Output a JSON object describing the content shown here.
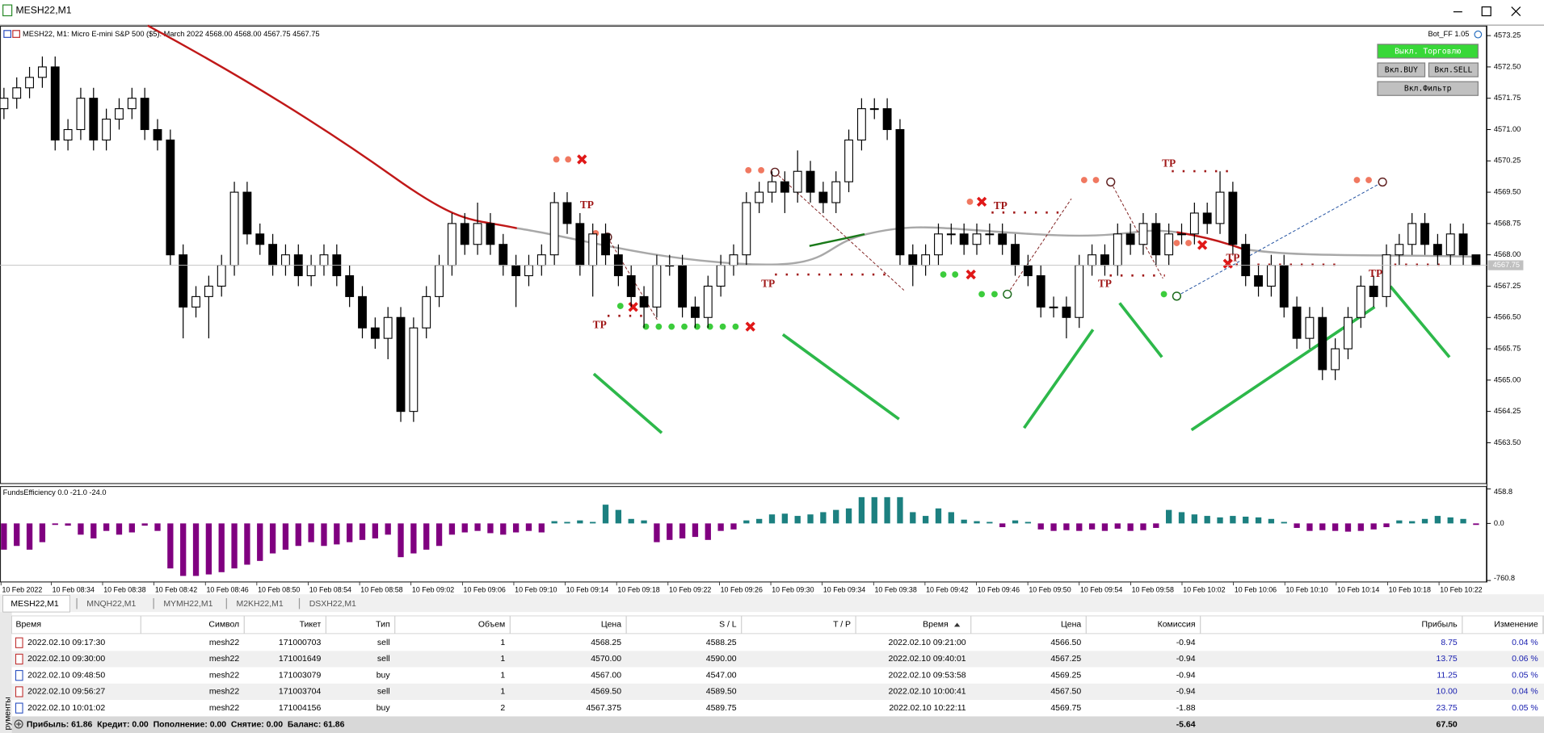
{
  "window": {
    "title": "MESH22,M1"
  },
  "chart_data": [
    {
      "type": "candlestick",
      "header": "MESH22, M1:  Micro E-mini S&P 500 ($5): March 2022  4568.00 4568.00 4567.75 4567.75",
      "expert": "Bot_FF 1.05",
      "colors": {
        "up": "#ffffff",
        "down": "#000000",
        "outline": "#000000"
      },
      "ylim": [
        4562.51,
        4573.49
      ],
      "yticks": [
        4573.25,
        {
          "value": 4572.5,
          "label": "4572.50"
        },
        4571.75,
        {
          "value": 4571,
          "label": "4571.00"
        },
        4570.25,
        {
          "value": 4569.5,
          "label": "4569.50"
        },
        4568.75,
        {
          "value": 4568,
          "label": "4568.00"
        },
        4567.25,
        {
          "value": 4566.5,
          "label": "4566.50"
        },
        4565.75,
        {
          "value": 4565,
          "label": "4565.00"
        },
        4564.25,
        {
          "value": 4563.5,
          "label": "4563.50"
        }
      ],
      "current_price": 4567.75,
      "x_labels": [
        "10 Feb 2022",
        "10 Feb 08:34",
        "10 Feb 08:38",
        "10 Feb 08:42",
        "10 Feb 08:46",
        "10 Feb 08:50",
        "10 Feb 08:54",
        "10 Feb 08:58",
        "10 Feb 09:02",
        "10 Feb 09:06",
        "10 Feb 09:10",
        "10 Feb 09:14",
        "10 Feb 09:18",
        "10 Feb 09:22",
        "10 Feb 09:26",
        "10 Feb 09:30",
        "10 Feb 09:34",
        "10 Feb 09:38",
        "10 Feb 09:42",
        "10 Feb 09:46",
        "10 Feb 09:50",
        "10 Feb 09:54",
        "10 Feb 09:58",
        "10 Feb 10:02",
        "10 Feb 10:06",
        "10 Feb 10:10",
        "10 Feb 10:14",
        "10 Feb 10:18",
        "10 Feb 10:22"
      ],
      "tp_labels": [
        "TP",
        "TP",
        "TP",
        "TP",
        "TP",
        "TP",
        "TP",
        "TP"
      ],
      "ohlc": [
        [
          4571.5,
          4572.0,
          4571.25,
          4571.75
        ],
        [
          4571.75,
          4572.25,
          4571.5,
          4572.0
        ],
        [
          4572.0,
          4572.5,
          4571.75,
          4572.25
        ],
        [
          4572.25,
          4572.75,
          4572.0,
          4572.5
        ],
        [
          4572.5,
          4572.75,
          4570.5,
          4570.75
        ],
        [
          4570.75,
          4571.25,
          4570.5,
          4571.0
        ],
        [
          4571.0,
          4572.0,
          4570.75,
          4571.75
        ],
        [
          4571.75,
          4572.0,
          4570.5,
          4570.75
        ],
        [
          4570.75,
          4571.5,
          4570.5,
          4571.25
        ],
        [
          4571.25,
          4571.75,
          4571.0,
          4571.5
        ],
        [
          4571.5,
          4572.0,
          4571.25,
          4571.75
        ],
        [
          4571.75,
          4572.0,
          4570.75,
          4571.0
        ],
        [
          4571.0,
          4571.25,
          4570.5,
          4570.75
        ],
        [
          4570.75,
          4571.0,
          4567.75,
          4568.0
        ],
        [
          4568.0,
          4568.25,
          4566.0,
          4566.75
        ],
        [
          4566.75,
          4567.25,
          4566.5,
          4567.0
        ],
        [
          4567.0,
          4567.5,
          4566.0,
          4567.25
        ],
        [
          4567.25,
          4568.0,
          4567.0,
          4567.75
        ],
        [
          4567.75,
          4569.75,
          4567.5,
          4569.5
        ],
        [
          4569.5,
          4569.75,
          4568.25,
          4568.5
        ],
        [
          4568.5,
          4568.75,
          4568.0,
          4568.25
        ],
        [
          4568.25,
          4568.5,
          4567.5,
          4567.75
        ],
        [
          4567.75,
          4568.25,
          4567.5,
          4568.0
        ],
        [
          4568.0,
          4568.25,
          4567.25,
          4567.5
        ],
        [
          4567.5,
          4568.0,
          4567.25,
          4567.75
        ],
        [
          4567.75,
          4568.25,
          4567.5,
          4568.0
        ],
        [
          4568.0,
          4568.25,
          4567.25,
          4567.5
        ],
        [
          4567.5,
          4567.75,
          4566.75,
          4567.0
        ],
        [
          4567.0,
          4567.25,
          4566.0,
          4566.25
        ],
        [
          4566.25,
          4566.5,
          4565.75,
          4566.0
        ],
        [
          4566.0,
          4566.75,
          4565.5,
          4566.5
        ],
        [
          4566.5,
          4566.75,
          4564.0,
          4564.25
        ],
        [
          4564.25,
          4566.5,
          4564.0,
          4566.25
        ],
        [
          4566.25,
          4567.25,
          4566.0,
          4567.0
        ],
        [
          4567.0,
          4568.0,
          4566.75,
          4567.75
        ],
        [
          4567.75,
          4569.0,
          4567.5,
          4568.75
        ],
        [
          4568.75,
          4569.0,
          4568.0,
          4568.25
        ],
        [
          4568.25,
          4569.25,
          4568.0,
          4568.75
        ],
        [
          4568.75,
          4569.0,
          4568.0,
          4568.25
        ],
        [
          4568.25,
          4568.5,
          4567.5,
          4567.75
        ],
        [
          4567.75,
          4568.0,
          4566.75,
          4567.5
        ],
        [
          4567.5,
          4568.0,
          4567.25,
          4567.75
        ],
        [
          4567.75,
          4568.25,
          4567.5,
          4568.0
        ],
        [
          4568.0,
          4569.5,
          4567.75,
          4569.25
        ],
        [
          4569.25,
          4569.5,
          4568.5,
          4568.75
        ],
        [
          4568.75,
          4569.0,
          4567.5,
          4567.75
        ],
        [
          4567.75,
          4568.75,
          4567.0,
          4568.5
        ],
        [
          4568.5,
          4568.75,
          4567.75,
          4568.0
        ],
        [
          4568.0,
          4568.25,
          4567.25,
          4567.5
        ],
        [
          4567.5,
          4567.75,
          4566.75,
          4567.0
        ],
        [
          4567.0,
          4567.25,
          4566.25,
          4566.75
        ],
        [
          4566.75,
          4568.0,
          4566.5,
          4567.75
        ],
        [
          4567.75,
          4568.0,
          4567.5,
          4567.75
        ],
        [
          4567.75,
          4568.0,
          4566.5,
          4566.75
        ],
        [
          4566.75,
          4567.0,
          4566.25,
          4566.5
        ],
        [
          4566.5,
          4567.5,
          4566.25,
          4567.25
        ],
        [
          4567.25,
          4568.0,
          4567.0,
          4567.75
        ],
        [
          4567.75,
          4568.25,
          4567.5,
          4568.0
        ],
        [
          4568.0,
          4569.5,
          4567.75,
          4569.25
        ],
        [
          4569.25,
          4569.75,
          4569.0,
          4569.5
        ],
        [
          4569.5,
          4570.0,
          4569.25,
          4569.75
        ],
        [
          4569.75,
          4570.0,
          4569.0,
          4569.5
        ],
        [
          4569.5,
          4570.5,
          4569.25,
          4570.0
        ],
        [
          4570.0,
          4570.25,
          4569.25,
          4569.5
        ],
        [
          4569.5,
          4569.75,
          4569.0,
          4569.25
        ],
        [
          4569.25,
          4570.0,
          4569.0,
          4569.75
        ],
        [
          4569.75,
          4571.0,
          4569.5,
          4570.75
        ],
        [
          4570.75,
          4571.75,
          4570.5,
          4571.5
        ],
        [
          4571.5,
          4571.75,
          4571.25,
          4571.5
        ],
        [
          4571.5,
          4571.75,
          4570.75,
          4571.0
        ],
        [
          4571.0,
          4571.25,
          4567.75,
          4568.0
        ],
        [
          4568.0,
          4568.25,
          4567.25,
          4567.75
        ],
        [
          4567.75,
          4568.25,
          4567.5,
          4568.0
        ],
        [
          4568.0,
          4568.75,
          4567.75,
          4568.5
        ],
        [
          4568.5,
          4568.75,
          4568.25,
          4568.5
        ],
        [
          4568.5,
          4568.75,
          4568.0,
          4568.25
        ],
        [
          4568.25,
          4568.75,
          4568.0,
          4568.5
        ],
        [
          4568.5,
          4568.75,
          4568.25,
          4568.5
        ],
        [
          4568.5,
          4568.75,
          4568.0,
          4568.25
        ],
        [
          4568.25,
          4568.5,
          4567.5,
          4567.75
        ],
        [
          4567.75,
          4568.0,
          4567.25,
          4567.5
        ],
        [
          4567.5,
          4567.75,
          4566.5,
          4566.75
        ],
        [
          4566.75,
          4567.0,
          4566.5,
          4566.75
        ],
        [
          4566.75,
          4567.0,
          4566.0,
          4566.5
        ],
        [
          4566.5,
          4568.0,
          4566.25,
          4567.75
        ],
        [
          4567.75,
          4568.25,
          4567.5,
          4568.0
        ],
        [
          4568.0,
          4568.25,
          4567.5,
          4567.75
        ],
        [
          4567.75,
          4568.75,
          4567.5,
          4568.5
        ],
        [
          4568.5,
          4568.75,
          4568.0,
          4568.25
        ],
        [
          4568.25,
          4569.0,
          4568.0,
          4568.75
        ],
        [
          4568.75,
          4569.0,
          4567.75,
          4568.0
        ],
        [
          4568.0,
          4568.75,
          4567.75,
          4568.5
        ],
        [
          4568.5,
          4568.75,
          4568.25,
          4568.5
        ],
        [
          4568.5,
          4569.25,
          4568.25,
          4569.0
        ],
        [
          4569.0,
          4569.25,
          4568.5,
          4568.75
        ],
        [
          4568.75,
          4570.0,
          4568.5,
          4569.5
        ],
        [
          4569.5,
          4569.75,
          4568.0,
          4568.25
        ],
        [
          4568.25,
          4568.5,
          4567.25,
          4567.5
        ],
        [
          4567.5,
          4567.75,
          4567.0,
          4567.25
        ],
        [
          4567.25,
          4568.0,
          4567.0,
          4567.75
        ],
        [
          4567.75,
          4568.0,
          4566.5,
          4566.75
        ],
        [
          4566.75,
          4567.0,
          4565.75,
          4566.0
        ],
        [
          4566.0,
          4566.75,
          4565.75,
          4566.5
        ],
        [
          4566.5,
          4566.75,
          4565.0,
          4565.25
        ],
        [
          4565.25,
          4566.0,
          4565.0,
          4565.75
        ],
        [
          4565.75,
          4566.75,
          4565.5,
          4566.5
        ],
        [
          4566.5,
          4567.5,
          4566.25,
          4567.25
        ],
        [
          4567.25,
          4567.5,
          4566.75,
          4567.0
        ],
        [
          4567.0,
          4568.25,
          4566.75,
          4568.0
        ],
        [
          4568.0,
          4568.5,
          4567.75,
          4568.25
        ],
        [
          4568.25,
          4569.0,
          4568.0,
          4568.75
        ],
        [
          4568.75,
          4569.0,
          4568.0,
          4568.25
        ],
        [
          4568.25,
          4568.5,
          4567.75,
          4568.0
        ],
        [
          4568.0,
          4568.75,
          4567.75,
          4568.5
        ],
        [
          4568.5,
          4568.75,
          4567.75,
          4568.0
        ],
        [
          4568.0,
          4568.0,
          4567.75,
          4567.75
        ]
      ]
    },
    {
      "type": "bar",
      "title": "FundsEfficiency 0.0 -21.0 -24.0",
      "colors": {
        "positive": "#1c8080",
        "negative": "#800080"
      },
      "ylim": [
        -760.8,
        458.8
      ],
      "yticks": [
        458.8,
        {
          "value": 0,
          "label": "0.0"
        },
        -760.8
      ],
      "values": [
        -350,
        -300,
        -350,
        -250,
        -20,
        -30,
        -150,
        -200,
        -100,
        -150,
        -120,
        -30,
        -100,
        -600,
        -700,
        -700,
        -680,
        -650,
        -600,
        -550,
        -500,
        -400,
        -350,
        -300,
        -250,
        -300,
        -280,
        -250,
        -220,
        -200,
        -150,
        -450,
        -400,
        -350,
        -300,
        -150,
        -120,
        -100,
        -130,
        -150,
        -120,
        -100,
        -120,
        30,
        20,
        40,
        20,
        250,
        180,
        60,
        40,
        -250,
        -220,
        -200,
        -180,
        -220,
        -100,
        -80,
        40,
        60,
        120,
        130,
        100,
        120,
        150,
        180,
        200,
        350,
        350,
        350,
        350,
        150,
        100,
        200,
        150,
        50,
        30,
        20,
        -50,
        40,
        20,
        -80,
        -100,
        -90,
        -100,
        -80,
        -100,
        -70,
        -100,
        -90,
        -60,
        180,
        150,
        120,
        100,
        80,
        100,
        90,
        80,
        60,
        20,
        -60,
        -100,
        -90,
        -100,
        -110,
        -100,
        -80,
        -50,
        40,
        30,
        60,
        100,
        80,
        60,
        -20
      ]
    }
  ],
  "trade_panel": {
    "buttons": [
      "Выкл. Торговлю",
      "Вкл.BUY",
      "Вкл.SELL",
      "Вкл.Фильтр"
    ]
  },
  "tabs": [
    "MESH22,M1",
    "MNQH22,M1",
    "MYMH22,M1",
    "M2KH22,M1",
    "DSXH22,M1"
  ],
  "side_label": "рументы",
  "table": {
    "columns": [
      "Время",
      "Символ",
      "Тикет",
      "Тип",
      "Объем",
      "Цена",
      "S / L",
      "T / P",
      "Время",
      "Цена",
      "Комиссия",
      "Прибыль",
      "Изменение"
    ],
    "rows": [
      {
        "open_time": "2022.02.10 09:17:30",
        "symbol": "mesh22",
        "ticket": "171000703",
        "type": "sell",
        "volume": "1",
        "price": "4568.25",
        "sl": "4588.25",
        "close_time": "2022.02.10 09:21:00",
        "close_price": "4566.50",
        "commission": "-0.94",
        "profit": "8.75",
        "change": "0.04 %"
      },
      {
        "open_time": "2022.02.10 09:30:00",
        "symbol": "mesh22",
        "ticket": "171001649",
        "type": "sell",
        "volume": "1",
        "price": "4570.00",
        "sl": "4590.00",
        "close_time": "2022.02.10 09:40:01",
        "close_price": "4567.25",
        "commission": "-0.94",
        "profit": "13.75",
        "change": "0.06 %"
      },
      {
        "open_time": "2022.02.10 09:48:50",
        "symbol": "mesh22",
        "ticket": "171003079",
        "type": "buy",
        "volume": "1",
        "price": "4567.00",
        "sl": "4547.00",
        "close_time": "2022.02.10 09:53:58",
        "close_price": "4569.25",
        "commission": "-0.94",
        "profit": "11.25",
        "change": "0.05 %"
      },
      {
        "open_time": "2022.02.10 09:56:27",
        "symbol": "mesh22",
        "ticket": "171003704",
        "type": "sell",
        "volume": "1",
        "price": "4569.50",
        "sl": "4589.50",
        "close_time": "2022.02.10 10:00:41",
        "close_price": "4567.50",
        "commission": "-0.94",
        "profit": "10.00",
        "change": "0.04 %"
      },
      {
        "open_time": "2022.02.10 10:01:02",
        "symbol": "mesh22",
        "ticket": "171004156",
        "type": "buy",
        "volume": "2",
        "price": "4567.375",
        "sl": "4589.75",
        "close_time": "2022.02.10 10:22:11",
        "close_price": "4569.75",
        "commission": "-1.88",
        "profit": "23.75",
        "change": "0.05 %"
      }
    ],
    "footer": {
      "summary": "Прибыль: 61.86  Кредит: 0.00  Пополнение: 0.00  Снятие: 0.00  Баланс: 61.86",
      "commission": "-5.64",
      "profit": "67.50"
    }
  }
}
